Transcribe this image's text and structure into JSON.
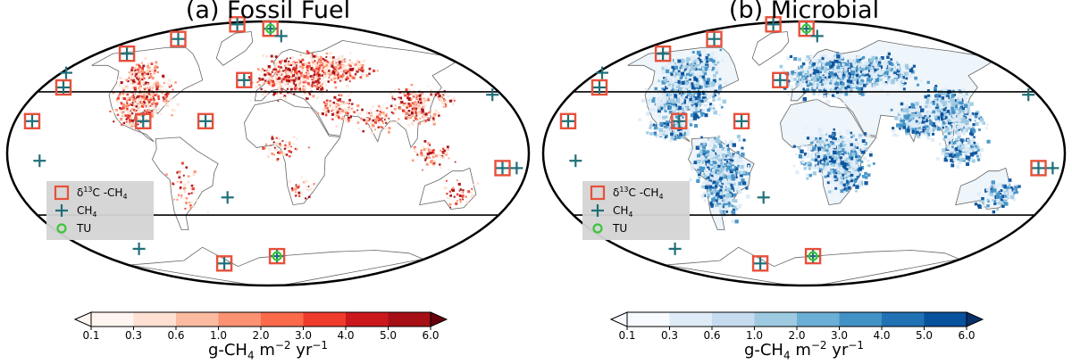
{
  "panels": [
    {
      "id": "fossil",
      "title": "(a) Fossil Fuel",
      "ramp": [
        "#fff5f0",
        "#fee0d2",
        "#fcbba1",
        "#fc9272",
        "#fb6a4a",
        "#ef3b2c",
        "#cb181d",
        "#a50f15",
        "#67000d"
      ],
      "land_colors": [
        "#fee0d2",
        "#fc9272",
        "#ef3b2c",
        "#a50f15"
      ]
    },
    {
      "id": "microbial",
      "title": "(b) Microbial",
      "ramp": [
        "#f7fbff",
        "#deebf7",
        "#c6dbef",
        "#9ecae1",
        "#6baed6",
        "#4292c6",
        "#2171b5",
        "#08519c",
        "#08306b"
      ],
      "land_colors": [
        "#deebf7",
        "#9ecae1",
        "#4292c6",
        "#08519c"
      ]
    }
  ],
  "colorbar": {
    "ticks": [
      "0.1",
      "0.3",
      "0.6",
      "1.0",
      "2.0",
      "3.0",
      "4.0",
      "5.0",
      "6.0"
    ],
    "label_main": "g-CH",
    "label_sub": "4",
    "label_m": " m",
    "label_msup": "−2",
    "label_yr": " yr",
    "label_yrsup": "−1"
  },
  "legend": {
    "entries": [
      {
        "label": "δ13C -CH4",
        "pre": "δ",
        "sup": "13",
        "mid": "C -CH",
        "sub": "4",
        "marker": "square",
        "color": "#e8503a"
      },
      {
        "label": "CH4",
        "pre": "CH",
        "sup": "",
        "mid": "",
        "sub": "4",
        "marker": "plus",
        "color": "#1f6f77"
      },
      {
        "label": "TU",
        "pre": "TU",
        "sup": "",
        "mid": "",
        "sub": "",
        "marker": "circle",
        "color": "#3cc43c"
      }
    ]
  },
  "sites": {
    "d13c_ch4": [
      [
        -150,
        68
      ],
      [
        -125,
        78
      ],
      [
        -100,
        88
      ],
      [
        -165,
        45
      ],
      [
        -170,
        22
      ],
      [
        -90,
        22
      ],
      [
        -45,
        22
      ],
      [
        -20,
        50
      ],
      [
        165,
        -10
      ],
      [
        10,
        -70
      ],
      [
        -55,
        -75
      ],
      [
        5,
        85
      ]
    ],
    "ch4_only": [
      [
        -178,
        55
      ],
      [
        -160,
        -5
      ],
      [
        -30,
        -30
      ],
      [
        -130,
        -65
      ],
      [
        175,
        40
      ],
      [
        175,
        -10
      ],
      [
        20,
        80
      ]
    ],
    "tu": [
      [
        10,
        -70
      ],
      [
        5,
        85
      ]
    ]
  }
}
